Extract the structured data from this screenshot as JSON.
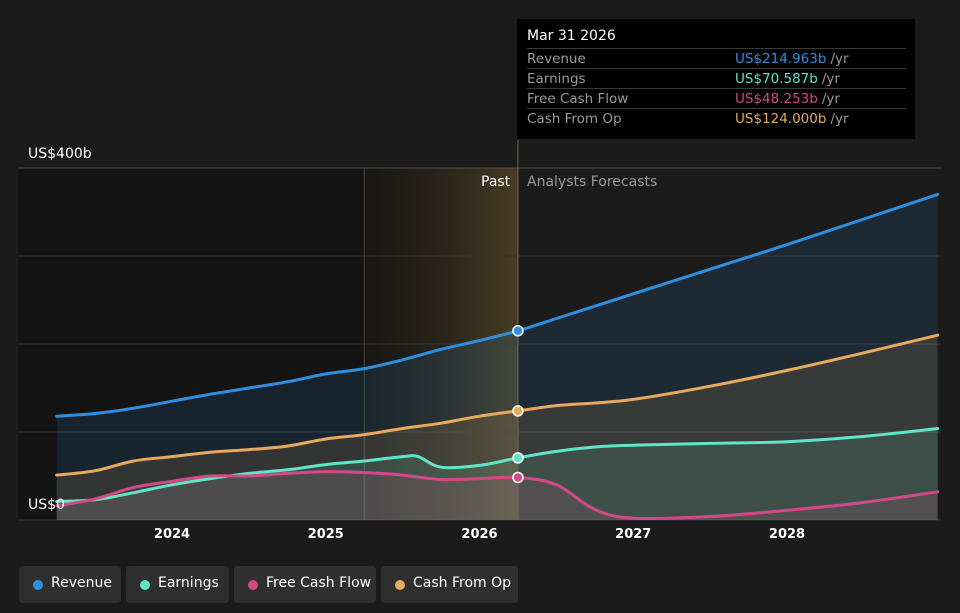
{
  "chart_data": {
    "type": "area",
    "ylabel_top": "US$400b",
    "ylabel_bottom": "US$0",
    "ylim": [
      0,
      400
    ],
    "xlim": [
      2023.25,
      2028.98
    ],
    "x_ticks": [
      "2024",
      "2025",
      "2026",
      "2027",
      "2028"
    ],
    "past_label": "Past",
    "forecast_label": "Analysts Forecasts",
    "past_region_start": 2025.25,
    "divider_x": 2026.25,
    "series": [
      {
        "name": "Revenue",
        "color": "#2e8fe0",
        "x": [
          2023.25,
          2023.5,
          2023.75,
          2024.0,
          2024.25,
          2024.5,
          2024.75,
          2025.0,
          2025.25,
          2025.5,
          2025.75,
          2026.0,
          2026.25,
          2026.5,
          2026.75,
          2027.0,
          2027.5,
          2028.0,
          2028.5,
          2028.98
        ],
        "y": [
          118,
          121,
          127,
          135,
          143,
          150,
          157,
          166,
          172,
          182,
          194,
          204,
          215,
          229,
          243,
          257,
          285,
          313,
          342,
          370
        ]
      },
      {
        "name": "Earnings",
        "color": "#5fe5c8",
        "x": [
          2023.25,
          2023.5,
          2023.75,
          2024.0,
          2024.25,
          2024.5,
          2024.75,
          2025.0,
          2025.25,
          2025.5,
          2025.6,
          2025.75,
          2026.0,
          2026.25,
          2026.5,
          2026.75,
          2027.0,
          2027.5,
          2028.0,
          2028.5,
          2028.98
        ],
        "y": [
          21,
          23,
          31,
          40,
          47,
          53,
          57,
          63,
          67,
          72,
          72,
          60,
          62,
          70.6,
          78,
          83,
          85,
          87,
          89,
          95,
          104
        ]
      },
      {
        "name": "Free Cash Flow",
        "color": "#d2498a",
        "x": [
          2023.25,
          2023.5,
          2023.75,
          2024.0,
          2024.25,
          2024.5,
          2024.75,
          2025.0,
          2025.25,
          2025.5,
          2025.75,
          2026.0,
          2026.25,
          2026.5,
          2026.75,
          2027.0,
          2027.5,
          2028.0,
          2028.5,
          2028.98
        ],
        "y": [
          16,
          24,
          37,
          44,
          50,
          50,
          53,
          55,
          54,
          51,
          46,
          47,
          48.3,
          40,
          12,
          2,
          4,
          11,
          20,
          32
        ]
      },
      {
        "name": "Cash From Op",
        "color": "#e7a95d",
        "x": [
          2023.25,
          2023.5,
          2023.75,
          2024.0,
          2024.25,
          2024.5,
          2024.75,
          2025.0,
          2025.25,
          2025.5,
          2025.75,
          2026.0,
          2026.25,
          2026.5,
          2026.75,
          2027.0,
          2027.5,
          2028.0,
          2028.5,
          2028.98
        ],
        "y": [
          51,
          56,
          67,
          72,
          77,
          80,
          84,
          92,
          97,
          104,
          110,
          118,
          124,
          130,
          133,
          137,
          152,
          170,
          190,
          210
        ]
      }
    ]
  },
  "tooltip": {
    "date": "Mar 31 2026",
    "unit": "/yr",
    "rows": [
      {
        "name": "Revenue",
        "value": "US$214.963b",
        "color": "#2e8fe0"
      },
      {
        "name": "Earnings",
        "value": "US$70.587b",
        "color": "#5fe5c8"
      },
      {
        "name": "Free Cash Flow",
        "value": "US$48.253b",
        "color": "#d2498a"
      },
      {
        "name": "Cash From Op",
        "value": "US$124.000b",
        "color": "#e7a95d"
      }
    ]
  },
  "legend": [
    {
      "label": "Revenue",
      "color": "#2e8fe0"
    },
    {
      "label": "Earnings",
      "color": "#5fe5c8"
    },
    {
      "label": "Free Cash Flow",
      "color": "#d2498a"
    },
    {
      "label": "Cash From Op",
      "color": "#e7a95d"
    }
  ]
}
